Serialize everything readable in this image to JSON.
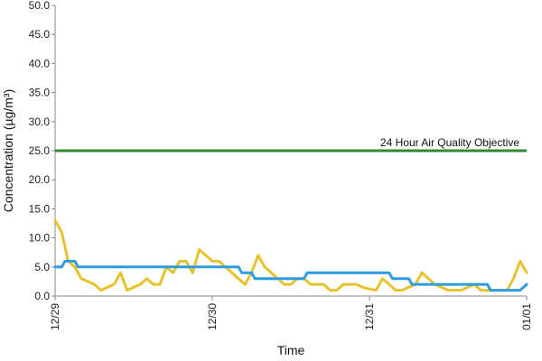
{
  "chart_data": {
    "type": "line",
    "xlabel": "Time",
    "ylabel": "Concentration (µg/m³)",
    "ylim": [
      0,
      50
    ],
    "y_ticks": [
      "0.0",
      "5.0",
      "10.0",
      "15.0",
      "20.0",
      "25.0",
      "30.0",
      "35.0",
      "40.0",
      "45.0",
      "50.0"
    ],
    "x_ticks": [
      "12/29",
      "12/30",
      "12/31",
      "01/01"
    ],
    "x_range_hours": [
      0,
      72
    ],
    "grid": false,
    "legend": "none",
    "objective": {
      "label": "24 Hour Air Quality Objective",
      "value": 25,
      "color": "#2e8b2e"
    },
    "series": [
      {
        "color": "#e8c22c",
        "x": [
          0,
          1,
          2,
          3,
          4,
          5,
          6,
          7,
          8,
          9,
          10,
          11,
          12,
          13,
          14,
          15,
          16,
          17,
          18,
          19,
          20,
          21,
          22,
          23,
          24,
          25,
          26,
          27,
          28,
          29,
          30,
          31,
          32,
          33,
          34,
          35,
          36,
          37,
          38,
          39,
          40,
          41,
          42,
          43,
          44,
          45,
          46,
          47,
          48,
          49,
          50,
          51,
          52,
          53,
          54,
          55,
          56,
          57,
          58,
          59,
          60,
          61,
          62,
          63,
          64,
          65,
          66,
          67,
          68,
          69,
          70,
          71,
          72
        ],
        "values": [
          13,
          11,
          6,
          5,
          3,
          2.5,
          2,
          1,
          1.5,
          2,
          4,
          1,
          1.5,
          2,
          3,
          2,
          2,
          5,
          4,
          6,
          6,
          4,
          8,
          7,
          6,
          6,
          5,
          4,
          3,
          2,
          4,
          7,
          5,
          4,
          3,
          2,
          2,
          3,
          3,
          2,
          2,
          2,
          1,
          1,
          2,
          2,
          2,
          1.5,
          1.2,
          1,
          3,
          2,
          1,
          1,
          1.5,
          2,
          4,
          3,
          2,
          1.5,
          1,
          1,
          1,
          1.5,
          2,
          1,
          1,
          1,
          1,
          1,
          3,
          6,
          4
        ]
      },
      {
        "color": "#2f9be0",
        "x": [
          0,
          1,
          1.5,
          3,
          3.5,
          9,
          9.5,
          28,
          28.5,
          30,
          30.5,
          38,
          38.5,
          51,
          51.5,
          54,
          54.5,
          66,
          66.5,
          71,
          72
        ],
        "values": [
          5,
          5,
          6,
          6,
          5,
          5,
          5,
          5,
          4,
          4,
          3,
          3,
          4,
          4,
          3,
          3,
          2,
          2,
          1,
          1,
          2
        ]
      }
    ]
  }
}
